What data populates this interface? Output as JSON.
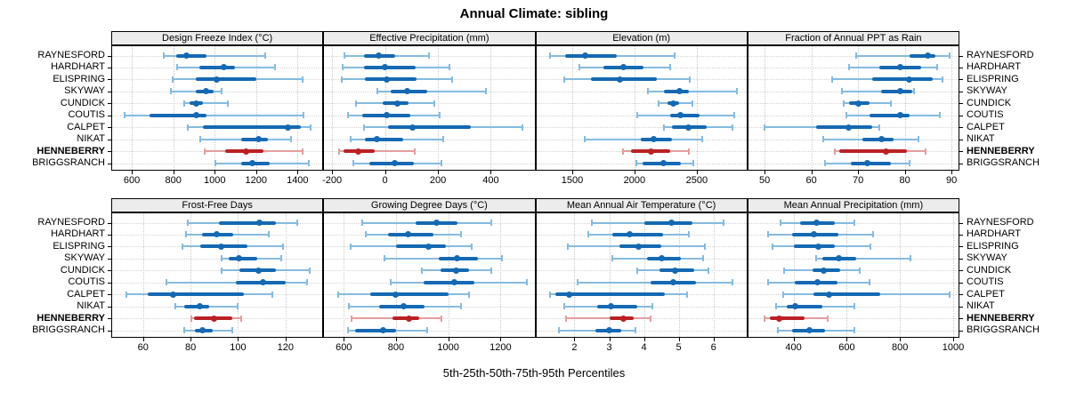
{
  "title": "Annual Climate: sibling",
  "xlabel": "5th-25th-50th-75th-95th Percentiles",
  "colors": {
    "series": "#1569b3",
    "series_light": "#85bbe0",
    "highlight": "#bb2025",
    "highlight_light": "#e59d9e",
    "grid": "#c9c9c9",
    "strip_bg": "#ececec",
    "border": "#000000"
  },
  "chart_data": {
    "type": "dot-whisker-percentiles",
    "percentile_labels": [
      "5th",
      "25th",
      "50th",
      "75th",
      "95th"
    ],
    "stations": [
      "RAYNESFORD",
      "HARDHART",
      "ELISPRING",
      "SKYWAY",
      "CUNDICK",
      "COUTIS",
      "CALPET",
      "NIKAT",
      "HENNEBERRY",
      "BRIGGSRANCH"
    ],
    "highlight_station": "HENNEBERRY",
    "layout": "2 rows x 4 columns, station labels on both left and right, bottom axes per panel",
    "panels": [
      {
        "title": "Design Freeze Index (°C)",
        "xlim": [
          505,
          1520
        ],
        "ticks": [
          600,
          800,
          1000,
          1200,
          1400
        ],
        "values": [
          [
            755,
            815,
            865,
            960,
            1245
          ],
          [
            820,
            925,
            1045,
            1100,
            1290
          ],
          [
            795,
            910,
            1010,
            1200,
            1425
          ],
          [
            790,
            910,
            960,
            995,
            1035
          ],
          [
            855,
            880,
            913,
            945,
            1065
          ],
          [
            565,
            685,
            913,
            960,
            1430
          ],
          [
            870,
            945,
            1353,
            1415,
            1465
          ],
          [
            930,
            1130,
            1210,
            1258,
            1370
          ],
          [
            950,
            1050,
            1150,
            1235,
            1425
          ],
          [
            1005,
            1130,
            1183,
            1265,
            1455
          ]
        ]
      },
      {
        "title": "Effective Precipitation (mm)",
        "xlim": [
          -230,
          565
        ],
        "ticks": [
          -200,
          0,
          200,
          400
        ],
        "values": [
          [
            -155,
            -80,
            -25,
            40,
            165
          ],
          [
            -160,
            -80,
            0,
            115,
            245
          ],
          [
            -165,
            -75,
            5,
            120,
            255
          ],
          [
            -30,
            20,
            85,
            160,
            380
          ],
          [
            -110,
            -10,
            48,
            90,
            185
          ],
          [
            -140,
            -85,
            5,
            95,
            205
          ],
          [
            -80,
            10,
            105,
            325,
            520
          ],
          [
            -130,
            -75,
            -30,
            70,
            220
          ],
          [
            -175,
            -158,
            -100,
            -40,
            113
          ],
          [
            -120,
            -60,
            35,
            110,
            215
          ]
        ]
      },
      {
        "title": "Elevation (m)",
        "xlim": [
          1210,
          2900
        ],
        "ticks": [
          1500,
          2000,
          2500
        ],
        "values": [
          [
            1320,
            1445,
            1605,
            1860,
            2320
          ],
          [
            1560,
            1750,
            1910,
            2075,
            2290
          ],
          [
            1435,
            1650,
            1885,
            2180,
            2445
          ],
          [
            2105,
            2240,
            2360,
            2440,
            2820
          ],
          [
            2195,
            2265,
            2310,
            2355,
            2465
          ],
          [
            2020,
            2290,
            2370,
            2525,
            2800
          ],
          [
            2235,
            2300,
            2435,
            2580,
            2790
          ],
          [
            1600,
            2050,
            2155,
            2300,
            2545
          ],
          [
            1910,
            1970,
            2130,
            2285,
            2440
          ],
          [
            2015,
            2065,
            2230,
            2370,
            2470
          ]
        ]
      },
      {
        "title": "Fraction of Annual PPT as Rain",
        "xlim": [
          46.5,
          91.5
        ],
        "ticks": [
          50,
          60,
          70,
          80,
          90
        ],
        "values": [
          [
            69.5,
            81,
            85,
            86.5,
            89.5
          ],
          [
            68,
            74.5,
            79,
            83.5,
            87
          ],
          [
            64.5,
            73,
            81,
            86,
            88
          ],
          [
            66.5,
            75,
            79,
            81.5,
            82
          ],
          [
            67,
            68,
            70,
            72.5,
            77
          ],
          [
            67.5,
            72.5,
            79,
            81,
            87.5
          ],
          [
            50,
            61,
            68,
            73,
            74.5
          ],
          [
            62.5,
            71,
            75,
            77.5,
            83
          ],
          [
            65,
            66,
            76,
            80.5,
            84.5
          ],
          [
            63,
            68.5,
            72,
            77,
            81
          ]
        ]
      },
      {
        "title": "Frost-Free Days",
        "xlim": [
          47,
          135.5
        ],
        "ticks": [
          60,
          80,
          100,
          120
        ],
        "values": [
          [
            79,
            92,
            109,
            116,
            125
          ],
          [
            78,
            85,
            91,
            98,
            113
          ],
          [
            76.5,
            84,
            93,
            104,
            119
          ],
          [
            93,
            96,
            100.5,
            108,
            118
          ],
          [
            93,
            100.5,
            108.5,
            116,
            130
          ],
          [
            70,
            99,
            110.5,
            120,
            129
          ],
          [
            53,
            62,
            72.5,
            102.5,
            114.5
          ],
          [
            73.5,
            77.5,
            84,
            88,
            100
          ],
          [
            80.5,
            81.5,
            90,
            97.5,
            101.5
          ],
          [
            77.5,
            82,
            85,
            89.5,
            97.5
          ]
        ]
      },
      {
        "title": "Growing Degree Days (°C)",
        "xlim": [
          525,
          1330
        ],
        "ticks": [
          600,
          800,
          1000,
          1200
        ],
        "values": [
          [
            670,
            875,
            955,
            1035,
            1165
          ],
          [
            685,
            770,
            845,
            945,
            1050
          ],
          [
            625,
            800,
            925,
            990,
            1090
          ],
          [
            755,
            965,
            1035,
            1115,
            1205
          ],
          [
            900,
            970,
            1030,
            1080,
            1165
          ],
          [
            780,
            905,
            1025,
            1100,
            1300
          ],
          [
            580,
            700,
            800,
            1000,
            1080
          ],
          [
            620,
            735,
            830,
            910,
            1050
          ],
          [
            630,
            785,
            850,
            890,
            975
          ],
          [
            615,
            645,
            750,
            800,
            920
          ]
        ]
      },
      {
        "title": "Mean Annual Air Temperature (°C)",
        "xlim": [
          0.9,
          6.95
        ],
        "ticks": [
          2,
          3,
          4,
          5,
          6
        ],
        "values": [
          [
            2.5,
            4.0,
            4.8,
            5.4,
            6.3
          ],
          [
            2.4,
            3.1,
            3.6,
            4.55,
            5.3
          ],
          [
            1.8,
            3.3,
            3.85,
            4.5,
            5.75
          ],
          [
            3.1,
            4.1,
            4.5,
            5.05,
            5.7
          ],
          [
            3.8,
            4.45,
            4.9,
            5.45,
            5.85
          ],
          [
            2.1,
            4.2,
            4.85,
            5.5,
            6.55
          ],
          [
            1.3,
            1.45,
            1.85,
            4.6,
            5.25
          ],
          [
            1.7,
            2.65,
            3.05,
            3.8,
            4.25
          ],
          [
            1.75,
            3.0,
            3.4,
            3.7,
            4.2
          ],
          [
            1.55,
            2.6,
            3.0,
            3.35,
            3.75
          ]
        ]
      },
      {
        "title": "Mean Annual Precipitation (mm)",
        "xlim": [
          230,
          1020
        ],
        "ticks": [
          400,
          600,
          800,
          1000
        ],
        "values": [
          [
            350,
            425,
            485,
            555,
            630
          ],
          [
            305,
            395,
            475,
            570,
            700
          ],
          [
            320,
            400,
            495,
            555,
            690
          ],
          [
            485,
            510,
            570,
            635,
            840
          ],
          [
            365,
            470,
            515,
            575,
            650
          ],
          [
            305,
            405,
            490,
            565,
            685
          ],
          [
            360,
            475,
            535,
            725,
            985
          ],
          [
            335,
            375,
            405,
            510,
            630
          ],
          [
            290,
            310,
            345,
            440,
            530
          ],
          [
            340,
            395,
            460,
            520,
            630
          ]
        ]
      }
    ]
  }
}
